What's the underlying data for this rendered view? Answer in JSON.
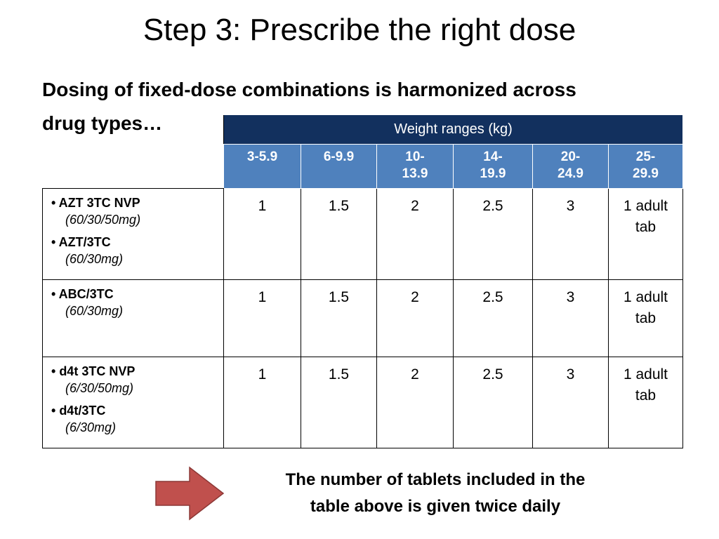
{
  "title": "Step 3: Prescribe the right dose",
  "subtitle_lines": [
    "Dosing of fixed-dose combinations is harmonized across",
    "drug types…"
  ],
  "table": {
    "group_header": "Weight ranges (kg)",
    "columns": [
      "3-5.9",
      "6-9.9",
      "10-13.9",
      "14-19.9",
      "20-24.9",
      "25-29.9"
    ],
    "rows": [
      {
        "drugs": [
          {
            "name": "AZT 3TC NVP",
            "dose": "(60/30/50mg)"
          },
          {
            "name": "AZT/3TC",
            "dose": "(60/30mg)"
          }
        ],
        "values": [
          "1",
          "1.5",
          "2",
          "2.5",
          "3",
          "1 adult tab"
        ]
      },
      {
        "drugs": [
          {
            "name": "ABC/3TC",
            "dose": "(60/30mg)"
          }
        ],
        "values": [
          "1",
          "1.5",
          "2",
          "2.5",
          "3",
          "1 adult tab"
        ]
      },
      {
        "drugs": [
          {
            "name": "d4t 3TC NVP",
            "dose": "(6/30/50mg)"
          },
          {
            "name": "d4t/3TC",
            "dose": "(6/30mg)"
          }
        ],
        "values": [
          "1",
          "1.5",
          "2",
          "2.5",
          "3",
          "1 adult tab"
        ]
      }
    ]
  },
  "note_lines": [
    "The number of tablets included in the",
    "table above is given twice daily"
  ]
}
